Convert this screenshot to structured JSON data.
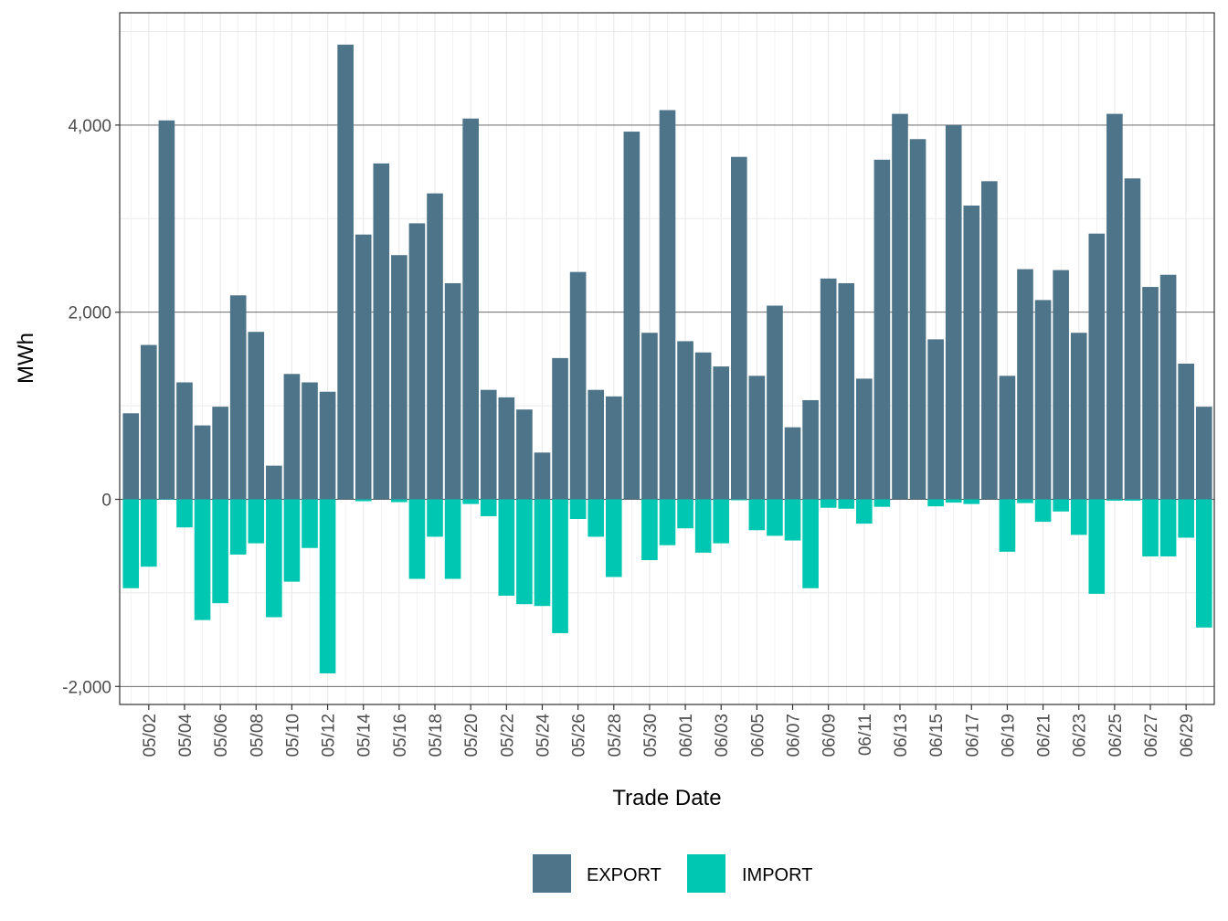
{
  "chart_data": {
    "type": "bar",
    "stacked": true,
    "title": "",
    "xlabel": "Trade Date",
    "ylabel": "MWh",
    "ylim": [
      -2200,
      5200
    ],
    "yticks": [
      -2000,
      0,
      2000,
      4000
    ],
    "ytick_labels": [
      "-2,000",
      "0",
      "2,000",
      "4,000"
    ],
    "xtick_labels": [
      "05/02",
      "05/04",
      "05/06",
      "05/08",
      "05/10",
      "05/12",
      "05/14",
      "05/16",
      "05/18",
      "05/20",
      "05/22",
      "05/24",
      "05/26",
      "05/28",
      "05/30",
      "06/01",
      "06/03",
      "06/05",
      "06/07",
      "06/09",
      "06/11",
      "06/13",
      "06/15",
      "06/17",
      "06/19",
      "06/21",
      "06/23",
      "06/25",
      "06/27",
      "06/29"
    ],
    "grid": true,
    "legend_position": "bottom",
    "categories": [
      "05/01",
      "05/02",
      "05/03",
      "05/04",
      "05/05",
      "05/06",
      "05/07",
      "05/08",
      "05/09",
      "05/10",
      "05/11",
      "05/12",
      "05/13",
      "05/14",
      "05/15",
      "05/16",
      "05/17",
      "05/18",
      "05/19",
      "05/20",
      "05/21",
      "05/22",
      "05/23",
      "05/24",
      "05/25",
      "05/26",
      "05/27",
      "05/28",
      "05/29",
      "05/30",
      "05/31",
      "06/01",
      "06/02",
      "06/03",
      "06/04",
      "06/05",
      "06/06",
      "06/07",
      "06/08",
      "06/09",
      "06/10",
      "06/11",
      "06/12",
      "06/13",
      "06/14",
      "06/15",
      "06/16",
      "06/17",
      "06/18",
      "06/19",
      "06/20",
      "06/21",
      "06/22",
      "06/23",
      "06/24",
      "06/25",
      "06/26",
      "06/27",
      "06/28",
      "06/29",
      "06/30"
    ],
    "series": [
      {
        "name": "EXPORT",
        "color": "#4e7489",
        "values": [
          920,
          1650,
          4050,
          1250,
          790,
          990,
          2180,
          1790,
          360,
          1340,
          1250,
          1150,
          4860,
          2830,
          3590,
          2610,
          2950,
          3270,
          2310,
          4070,
          1170,
          1090,
          960,
          500,
          1510,
          2430,
          1170,
          1100,
          3930,
          1780,
          4160,
          1690,
          1570,
          1420,
          3660,
          1320,
          2070,
          770,
          1060,
          2360,
          2310,
          1290,
          3630,
          4120,
          3850,
          1710,
          4000,
          3140,
          3400,
          1320,
          2460,
          2130,
          2450,
          1780,
          2840,
          4120,
          3430,
          2270,
          2400,
          1450,
          990
        ]
      },
      {
        "name": "IMPORT",
        "color": "#00c7b1",
        "values": [
          -950,
          -720,
          -5,
          -300,
          -1290,
          -1110,
          -590,
          -470,
          -1260,
          -880,
          -520,
          -1860,
          0,
          -20,
          0,
          -30,
          -850,
          -400,
          -850,
          -50,
          -180,
          -1030,
          -1120,
          -1140,
          -1430,
          -210,
          -400,
          -830,
          0,
          -650,
          -490,
          -310,
          -570,
          -470,
          -10,
          -330,
          -390,
          -440,
          -950,
          -90,
          -100,
          -260,
          -80,
          0,
          0,
          -75,
          -35,
          -50,
          0,
          -560,
          -40,
          -240,
          -130,
          -380,
          -1010,
          -15,
          -15,
          -610,
          -610,
          -410,
          -1370
        ]
      }
    ]
  }
}
